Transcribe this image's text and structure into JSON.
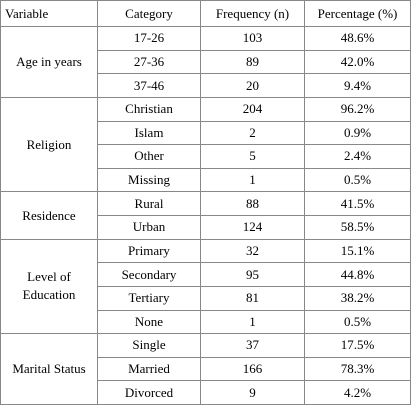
{
  "headers": {
    "variable": "Variable",
    "category": "Category",
    "frequency": "Frequency (n)",
    "percentage": "Percentage (%)"
  },
  "groups": [
    {
      "variable": "Age in years",
      "rows": [
        {
          "category": "17-26",
          "frequency": "103",
          "percentage": "48.6%"
        },
        {
          "category": "27-36",
          "frequency": "89",
          "percentage": "42.0%"
        },
        {
          "category": "37-46",
          "frequency": "20",
          "percentage": "9.4%"
        }
      ]
    },
    {
      "variable": "Religion",
      "rows": [
        {
          "category": "Christian",
          "frequency": "204",
          "percentage": "96.2%"
        },
        {
          "category": "Islam",
          "frequency": "2",
          "percentage": "0.9%"
        },
        {
          "category": "Other",
          "frequency": "5",
          "percentage": "2.4%"
        },
        {
          "category": "Missing",
          "frequency": "1",
          "percentage": "0.5%"
        }
      ]
    },
    {
      "variable": "Residence",
      "rows": [
        {
          "category": "Rural",
          "frequency": "88",
          "percentage": "41.5%"
        },
        {
          "category": "Urban",
          "frequency": "124",
          "percentage": "58.5%"
        }
      ]
    },
    {
      "variable": "Level of Education",
      "rows": [
        {
          "category": "Primary",
          "frequency": "32",
          "percentage": "15.1%"
        },
        {
          "category": "Secondary",
          "frequency": "95",
          "percentage": "44.8%"
        },
        {
          "category": "Tertiary",
          "frequency": "81",
          "percentage": "38.2%"
        },
        {
          "category": "None",
          "frequency": "1",
          "percentage": "0.5%"
        }
      ]
    },
    {
      "variable": "Marital Status",
      "rows": [
        {
          "category": "Single",
          "frequency": "37",
          "percentage": "17.5%"
        },
        {
          "category": "Married",
          "frequency": "166",
          "percentage": "78.3%"
        },
        {
          "category": "Divorced",
          "frequency": "9",
          "percentage": "4.2%"
        }
      ]
    }
  ]
}
